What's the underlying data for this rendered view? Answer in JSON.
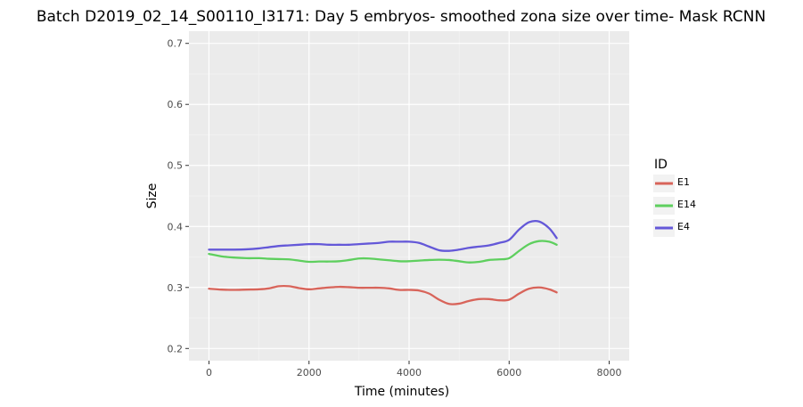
{
  "chart_data": {
    "type": "line",
    "title": "Batch D2019_02_14_S00110_I3171: Day 5 embryos- smoothed zona size over time- Mask RCNN",
    "xlabel": "Time (minutes)",
    "ylabel": "Size",
    "xlim": [
      -400,
      8400
    ],
    "ylim": [
      0.18,
      0.72
    ],
    "x_ticks": [
      0,
      2000,
      4000,
      6000,
      8000
    ],
    "y_ticks": [
      0.2,
      0.3,
      0.4,
      0.5,
      0.6,
      0.7
    ],
    "y_tick_labels": [
      "0.2",
      "0.3",
      "0.4",
      "0.5",
      "0.6",
      "0.7"
    ],
    "grid": true,
    "legend": {
      "title": "ID",
      "position": "right"
    },
    "series": [
      {
        "name": "E1",
        "color": "#d8645a",
        "x": [
          0,
          250,
          500,
          750,
          1000,
          1200,
          1400,
          1600,
          1800,
          2000,
          2200,
          2400,
          2600,
          2800,
          3000,
          3200,
          3400,
          3600,
          3800,
          4000,
          4200,
          4400,
          4600,
          4800,
          5000,
          5200,
          5400,
          5600,
          5800,
          6000,
          6200,
          6400,
          6600,
          6800,
          6950
        ],
        "values": [
          0.298,
          0.2965,
          0.296,
          0.2965,
          0.297,
          0.2985,
          0.302,
          0.302,
          0.299,
          0.297,
          0.2985,
          0.3,
          0.301,
          0.3005,
          0.2995,
          0.2995,
          0.2995,
          0.2985,
          0.296,
          0.296,
          0.295,
          0.29,
          0.28,
          0.273,
          0.2735,
          0.278,
          0.281,
          0.281,
          0.279,
          0.28,
          0.29,
          0.298,
          0.3,
          0.297,
          0.292
        ]
      },
      {
        "name": "E14",
        "color": "#5ecf5e",
        "x": [
          0,
          250,
          500,
          750,
          1000,
          1200,
          1400,
          1600,
          1800,
          2000,
          2200,
          2400,
          2600,
          2800,
          3000,
          3200,
          3400,
          3600,
          3800,
          4000,
          4200,
          4400,
          4600,
          4800,
          5000,
          5200,
          5400,
          5600,
          5800,
          6000,
          6200,
          6400,
          6600,
          6800,
          6950
        ],
        "values": [
          0.355,
          0.351,
          0.349,
          0.348,
          0.348,
          0.347,
          0.3465,
          0.346,
          0.344,
          0.342,
          0.3425,
          0.3425,
          0.343,
          0.345,
          0.3475,
          0.3475,
          0.346,
          0.3445,
          0.343,
          0.343,
          0.344,
          0.345,
          0.3455,
          0.345,
          0.343,
          0.341,
          0.342,
          0.345,
          0.346,
          0.348,
          0.36,
          0.371,
          0.376,
          0.375,
          0.37
        ]
      },
      {
        "name": "E4",
        "color": "#6458d8",
        "x": [
          0,
          250,
          500,
          750,
          1000,
          1200,
          1400,
          1600,
          1800,
          2000,
          2200,
          2400,
          2600,
          2800,
          3000,
          3200,
          3400,
          3600,
          3800,
          4000,
          4200,
          4400,
          4600,
          4800,
          5000,
          5200,
          5400,
          5600,
          5800,
          6000,
          6200,
          6400,
          6600,
          6800,
          6950
        ],
        "values": [
          0.362,
          0.362,
          0.362,
          0.3625,
          0.364,
          0.366,
          0.368,
          0.369,
          0.37,
          0.371,
          0.371,
          0.37,
          0.37,
          0.37,
          0.371,
          0.372,
          0.373,
          0.375,
          0.375,
          0.375,
          0.373,
          0.367,
          0.361,
          0.36,
          0.362,
          0.365,
          0.367,
          0.369,
          0.373,
          0.378,
          0.395,
          0.407,
          0.408,
          0.397,
          0.381
        ]
      }
    ]
  }
}
